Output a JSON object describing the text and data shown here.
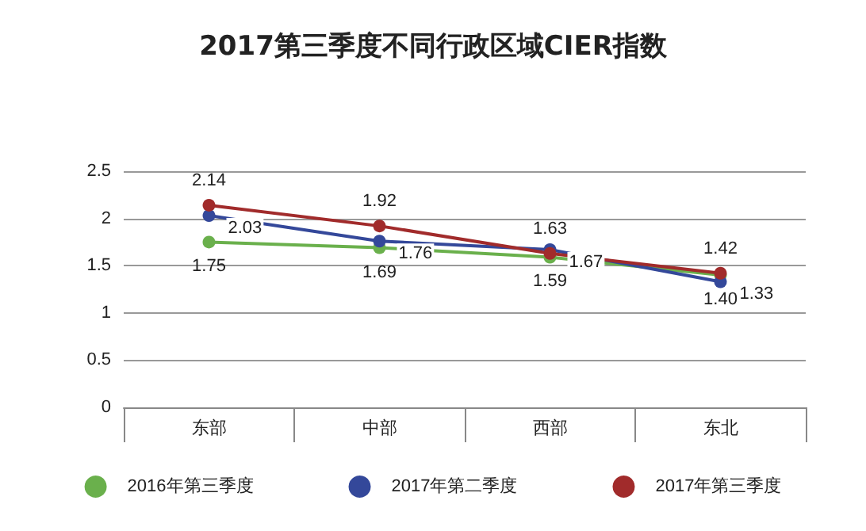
{
  "chart_data": {
    "type": "line",
    "title": "2017第三季度不同行政区域CIER指数",
    "categories": [
      "东部",
      "中部",
      "西部",
      "东北"
    ],
    "series": [
      {
        "name": "2016年第三季度",
        "color": "#6ab04c",
        "values": [
          1.75,
          1.69,
          1.59,
          1.4
        ],
        "value_labels": [
          "1.75",
          "1.69",
          "1.59",
          "1.40"
        ]
      },
      {
        "name": "2017年第二季度",
        "color": "#34489a",
        "values": [
          2.03,
          1.76,
          1.67,
          1.33
        ],
        "value_labels": [
          "2.03",
          "1.76",
          "1.67",
          "1.33"
        ]
      },
      {
        "name": "2017年第三季度",
        "color": "#a12b2b",
        "values": [
          2.14,
          1.92,
          1.63,
          1.42
        ],
        "value_labels": [
          "2.14",
          "1.92",
          "1.63",
          "1.42"
        ]
      }
    ],
    "ylim": [
      0,
      2.5
    ],
    "yticks": [
      0,
      0.5,
      1,
      1.5,
      2,
      2.5
    ],
    "grid": "y",
    "legend": "bottom",
    "marker": "circle",
    "line_style": "solid"
  }
}
